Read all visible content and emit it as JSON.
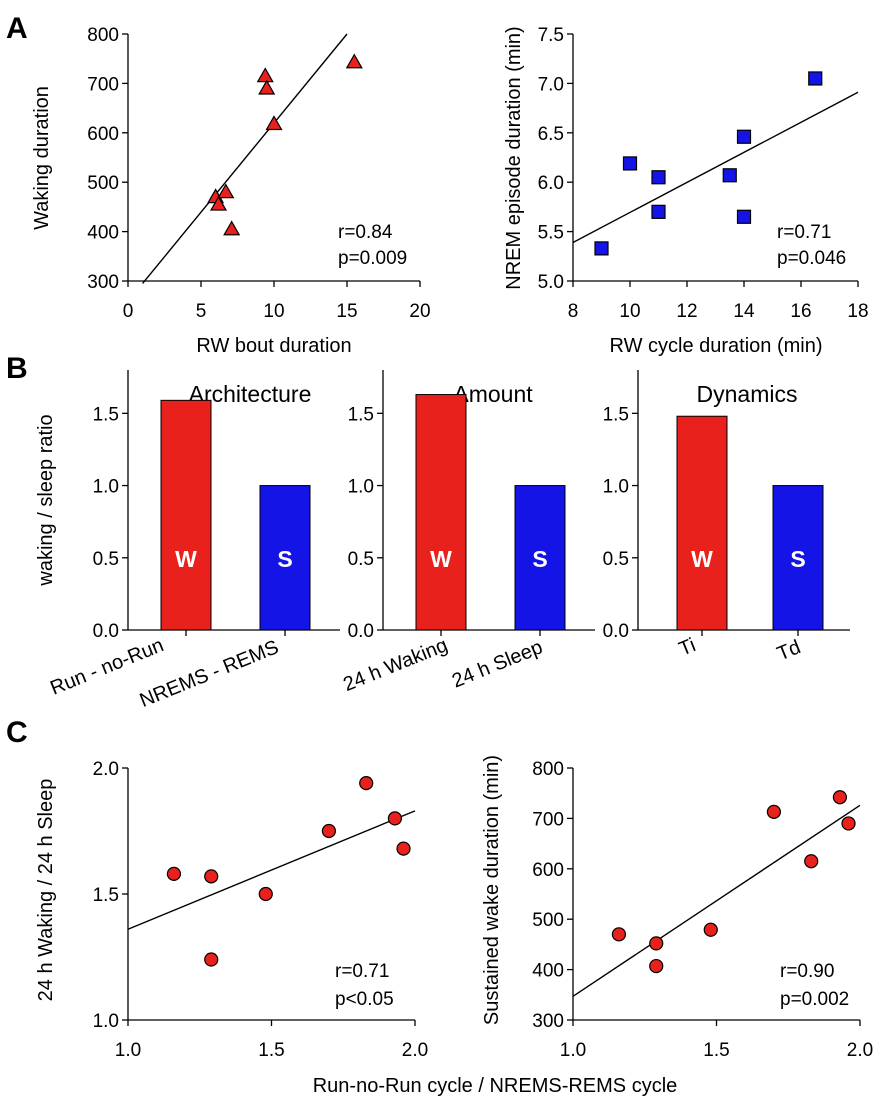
{
  "figure": {
    "panel_labels": [
      "A",
      "B",
      "C"
    ],
    "common_xlabel_C": "Run-no-Run cycle / NREMS-REMS cycle"
  },
  "colors": {
    "red": "#e8211c",
    "blue": "#1414e6",
    "black": "#000000",
    "bar_label": "#ffffff"
  },
  "chart_data": [
    {
      "id": "A-left",
      "type": "scatter",
      "marker": "triangle",
      "color": "#e8211c",
      "xlabel": "RW bout duration",
      "ylabel": "Waking duration",
      "xlim": [
        0,
        20
      ],
      "ylim": [
        300,
        800
      ],
      "xticks": [
        "0",
        "5",
        "10",
        "15",
        "20"
      ],
      "yticks": [
        "300",
        "400",
        "500",
        "600",
        "700",
        "800"
      ],
      "x": [
        6.0,
        6.2,
        6.7,
        7.1,
        9.4,
        9.5,
        10.0,
        15.5
      ],
      "y": [
        470,
        455,
        480,
        405,
        715,
        690,
        618,
        743
      ],
      "fit": {
        "x": [
          1.0,
          15.0
        ],
        "y": [
          295,
          800
        ]
      },
      "stats": [
        "r=0.84",
        "p=0.009"
      ]
    },
    {
      "id": "A-right",
      "type": "scatter",
      "marker": "square",
      "color": "#1414e6",
      "xlabel": "RW cycle duration (min)",
      "ylabel": "NREM episode duration (min)",
      "xlim": [
        8,
        18
      ],
      "ylim": [
        5.0,
        7.5
      ],
      "xticks": [
        "8",
        "10",
        "12",
        "14",
        "16",
        "18"
      ],
      "yticks": [
        "5.0",
        "5.5",
        "6.0",
        "6.5",
        "7.0",
        "7.5"
      ],
      "x": [
        9.0,
        10.0,
        11.0,
        11.0,
        13.5,
        14.0,
        14.0,
        16.5
      ],
      "y": [
        5.33,
        6.19,
        6.05,
        5.7,
        6.07,
        6.46,
        5.65,
        7.05
      ],
      "fit": {
        "x": [
          8.0,
          18.0
        ],
        "y": [
          5.39,
          6.91
        ]
      },
      "stats": [
        "r=0.71",
        "p=0.046"
      ]
    },
    {
      "id": "B-architecture",
      "type": "bar",
      "title": "Architecture",
      "ylabel": "waking / sleep ratio",
      "ylim": [
        0,
        1.8
      ],
      "yticks": [
        "0.0",
        "0.5",
        "1.0",
        "1.5"
      ],
      "categories": [
        "Run - no-Run",
        "NREMS - REMS"
      ],
      "values": [
        1.59,
        1.0
      ],
      "bar_labels": [
        "W",
        "S"
      ],
      "colors": [
        "#e8211c",
        "#1414e6"
      ]
    },
    {
      "id": "B-amount",
      "type": "bar",
      "title": "Amount",
      "ylim": [
        0,
        1.8
      ],
      "yticks": [
        "0.0",
        "0.5",
        "1.0",
        "1.5"
      ],
      "categories": [
        "24 h Waking",
        "24 h Sleep"
      ],
      "values": [
        1.63,
        1.0
      ],
      "bar_labels": [
        "W",
        "S"
      ],
      "colors": [
        "#e8211c",
        "#1414e6"
      ]
    },
    {
      "id": "B-dynamics",
      "type": "bar",
      "title": "Dynamics",
      "ylim": [
        0,
        1.8
      ],
      "yticks": [
        "0.0",
        "0.5",
        "1.0",
        "1.5"
      ],
      "categories": [
        "Ti",
        "Td"
      ],
      "values": [
        1.48,
        1.0
      ],
      "bar_labels": [
        "W",
        "S"
      ],
      "colors": [
        "#e8211c",
        "#1414e6"
      ]
    },
    {
      "id": "C-left",
      "type": "scatter",
      "marker": "circle",
      "color": "#e8211c",
      "ylabel": "24 h Waking / 24 h Sleep",
      "xlim": [
        1.0,
        2.0
      ],
      "ylim": [
        1.0,
        2.0
      ],
      "xticks": [
        "1.0",
        "1.5",
        "2.0"
      ],
      "yticks": [
        "1.0",
        "1.5",
        "2.0"
      ],
      "x": [
        1.16,
        1.29,
        1.29,
        1.48,
        1.7,
        1.83,
        1.93,
        1.96
      ],
      "y": [
        1.58,
        1.57,
        1.24,
        1.5,
        1.75,
        1.94,
        1.8,
        1.68
      ],
      "fit": {
        "x": [
          1.0,
          2.0
        ],
        "y": [
          1.36,
          1.83
        ]
      },
      "stats": [
        "r=0.71",
        "p<0.05"
      ]
    },
    {
      "id": "C-right",
      "type": "scatter",
      "marker": "circle",
      "color": "#e8211c",
      "ylabel": "Sustained wake duration (min)",
      "xlim": [
        1.0,
        2.0
      ],
      "ylim": [
        300,
        800
      ],
      "xticks": [
        "1.0",
        "1.5",
        "2.0"
      ],
      "yticks": [
        "300",
        "400",
        "500",
        "600",
        "700",
        "800"
      ],
      "x": [
        1.16,
        1.29,
        1.29,
        1.48,
        1.7,
        1.83,
        1.93,
        1.96
      ],
      "y": [
        470,
        452,
        407,
        479,
        713,
        615,
        742,
        690
      ],
      "fit": {
        "x": [
          1.0,
          2.0
        ],
        "y": [
          347,
          726
        ]
      },
      "stats": [
        "r=0.90",
        "p=0.002"
      ]
    }
  ]
}
